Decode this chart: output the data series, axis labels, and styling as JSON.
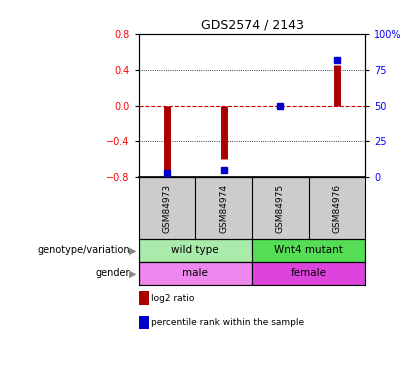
{
  "title": "GDS2574 / 2143",
  "samples": [
    "GSM84973",
    "GSM84974",
    "GSM84975",
    "GSM84976"
  ],
  "log2_ratio": [
    -0.75,
    -0.6,
    0.02,
    0.45
  ],
  "percentile": [
    3,
    5,
    50,
    82
  ],
  "ylim_left": [
    -0.8,
    0.8
  ],
  "ylim_right": [
    0,
    100
  ],
  "yticks_left": [
    -0.8,
    -0.4,
    0,
    0.4,
    0.8
  ],
  "yticks_right": [
    0,
    25,
    50,
    75,
    100
  ],
  "bar_color": "#aa0000",
  "dot_color": "#0000cc",
  "zero_line_color": "#cc0000",
  "grid_color": "#000000",
  "annotation_rows": [
    {
      "label": "genotype/variation",
      "groups": [
        {
          "samples": [
            0,
            1
          ],
          "text": "wild type",
          "color": "#aaeaaa"
        },
        {
          "samples": [
            2,
            3
          ],
          "text": "Wnt4 mutant",
          "color": "#55dd55"
        }
      ]
    },
    {
      "label": "gender",
      "groups": [
        {
          "samples": [
            0,
            1
          ],
          "text": "male",
          "color": "#ee88ee"
        },
        {
          "samples": [
            2,
            3
          ],
          "text": "female",
          "color": "#dd44dd"
        }
      ]
    }
  ],
  "legend": [
    {
      "color": "#aa0000",
      "label": "log2 ratio"
    },
    {
      "color": "#0000cc",
      "label": "percentile rank within the sample"
    }
  ],
  "sample_bg_color": "#cccccc",
  "bar_linewidth": 5
}
